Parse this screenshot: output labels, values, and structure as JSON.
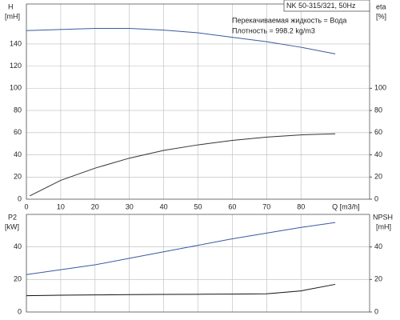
{
  "chart_data": [
    {
      "type": "line",
      "title": "NK 50-315/321, 50Hz",
      "annotations": [
        "Перекачиваемая жидкость = Вода",
        "Плотность = 998.2 kg/m3"
      ],
      "ylabel": "H",
      "yunit": "[mH]",
      "y2label": "eta",
      "y2unit": "[%]",
      "xlabel": "Q [m3/h]",
      "xlim": [
        0,
        100
      ],
      "xticks": [
        0,
        10,
        20,
        30,
        40,
        50,
        60,
        70,
        80
      ],
      "xtick_labels": true,
      "ylim": [
        0,
        176
      ],
      "yticks": [
        0,
        20,
        40,
        60,
        80,
        100,
        120,
        140
      ],
      "y2lim": [
        0,
        176
      ],
      "y2ticks": [
        0,
        20,
        40,
        60,
        80,
        100
      ],
      "grid": true,
      "series": [
        {
          "color": "#3a5aa0",
          "x": [
            0,
            10,
            20,
            30,
            40,
            50,
            60,
            70,
            80,
            90
          ],
          "values": [
            152,
            153,
            154,
            154,
            152.5,
            150,
            146,
            142,
            137,
            131
          ]
        },
        {
          "color": "#333333",
          "axis": "y2",
          "x": [
            1,
            10,
            20,
            30,
            40,
            50,
            60,
            70,
            80,
            90
          ],
          "values": [
            3,
            17,
            28,
            37,
            44,
            49,
            53,
            56,
            58,
            59
          ]
        }
      ]
    },
    {
      "type": "line",
      "ylabel": "P2",
      "yunit": "[kW]",
      "y2label": "NPSH",
      "y2unit": "[mH]",
      "xlim": [
        0,
        100
      ],
      "xticks": [
        0,
        10,
        20,
        30,
        40,
        50,
        60,
        70,
        80
      ],
      "xtick_labels": false,
      "ylim": [
        0,
        60
      ],
      "yticks": [
        0,
        20,
        40
      ],
      "y2lim": [
        0,
        60
      ],
      "y2ticks": [
        0,
        20,
        40
      ],
      "grid": true,
      "series": [
        {
          "color": "#3a5aa0",
          "x": [
            0,
            10,
            20,
            30,
            40,
            50,
            60,
            70,
            80,
            90
          ],
          "values": [
            23,
            26,
            29,
            33,
            37,
            41,
            45,
            48.5,
            52,
            55
          ]
        },
        {
          "color": "#111111",
          "axis": "y2",
          "x": [
            0,
            10,
            20,
            30,
            40,
            50,
            60,
            70,
            80,
            90
          ],
          "values": [
            10,
            10.3,
            10.5,
            10.7,
            10.8,
            10.9,
            11,
            11.2,
            13,
            17
          ]
        }
      ]
    }
  ]
}
